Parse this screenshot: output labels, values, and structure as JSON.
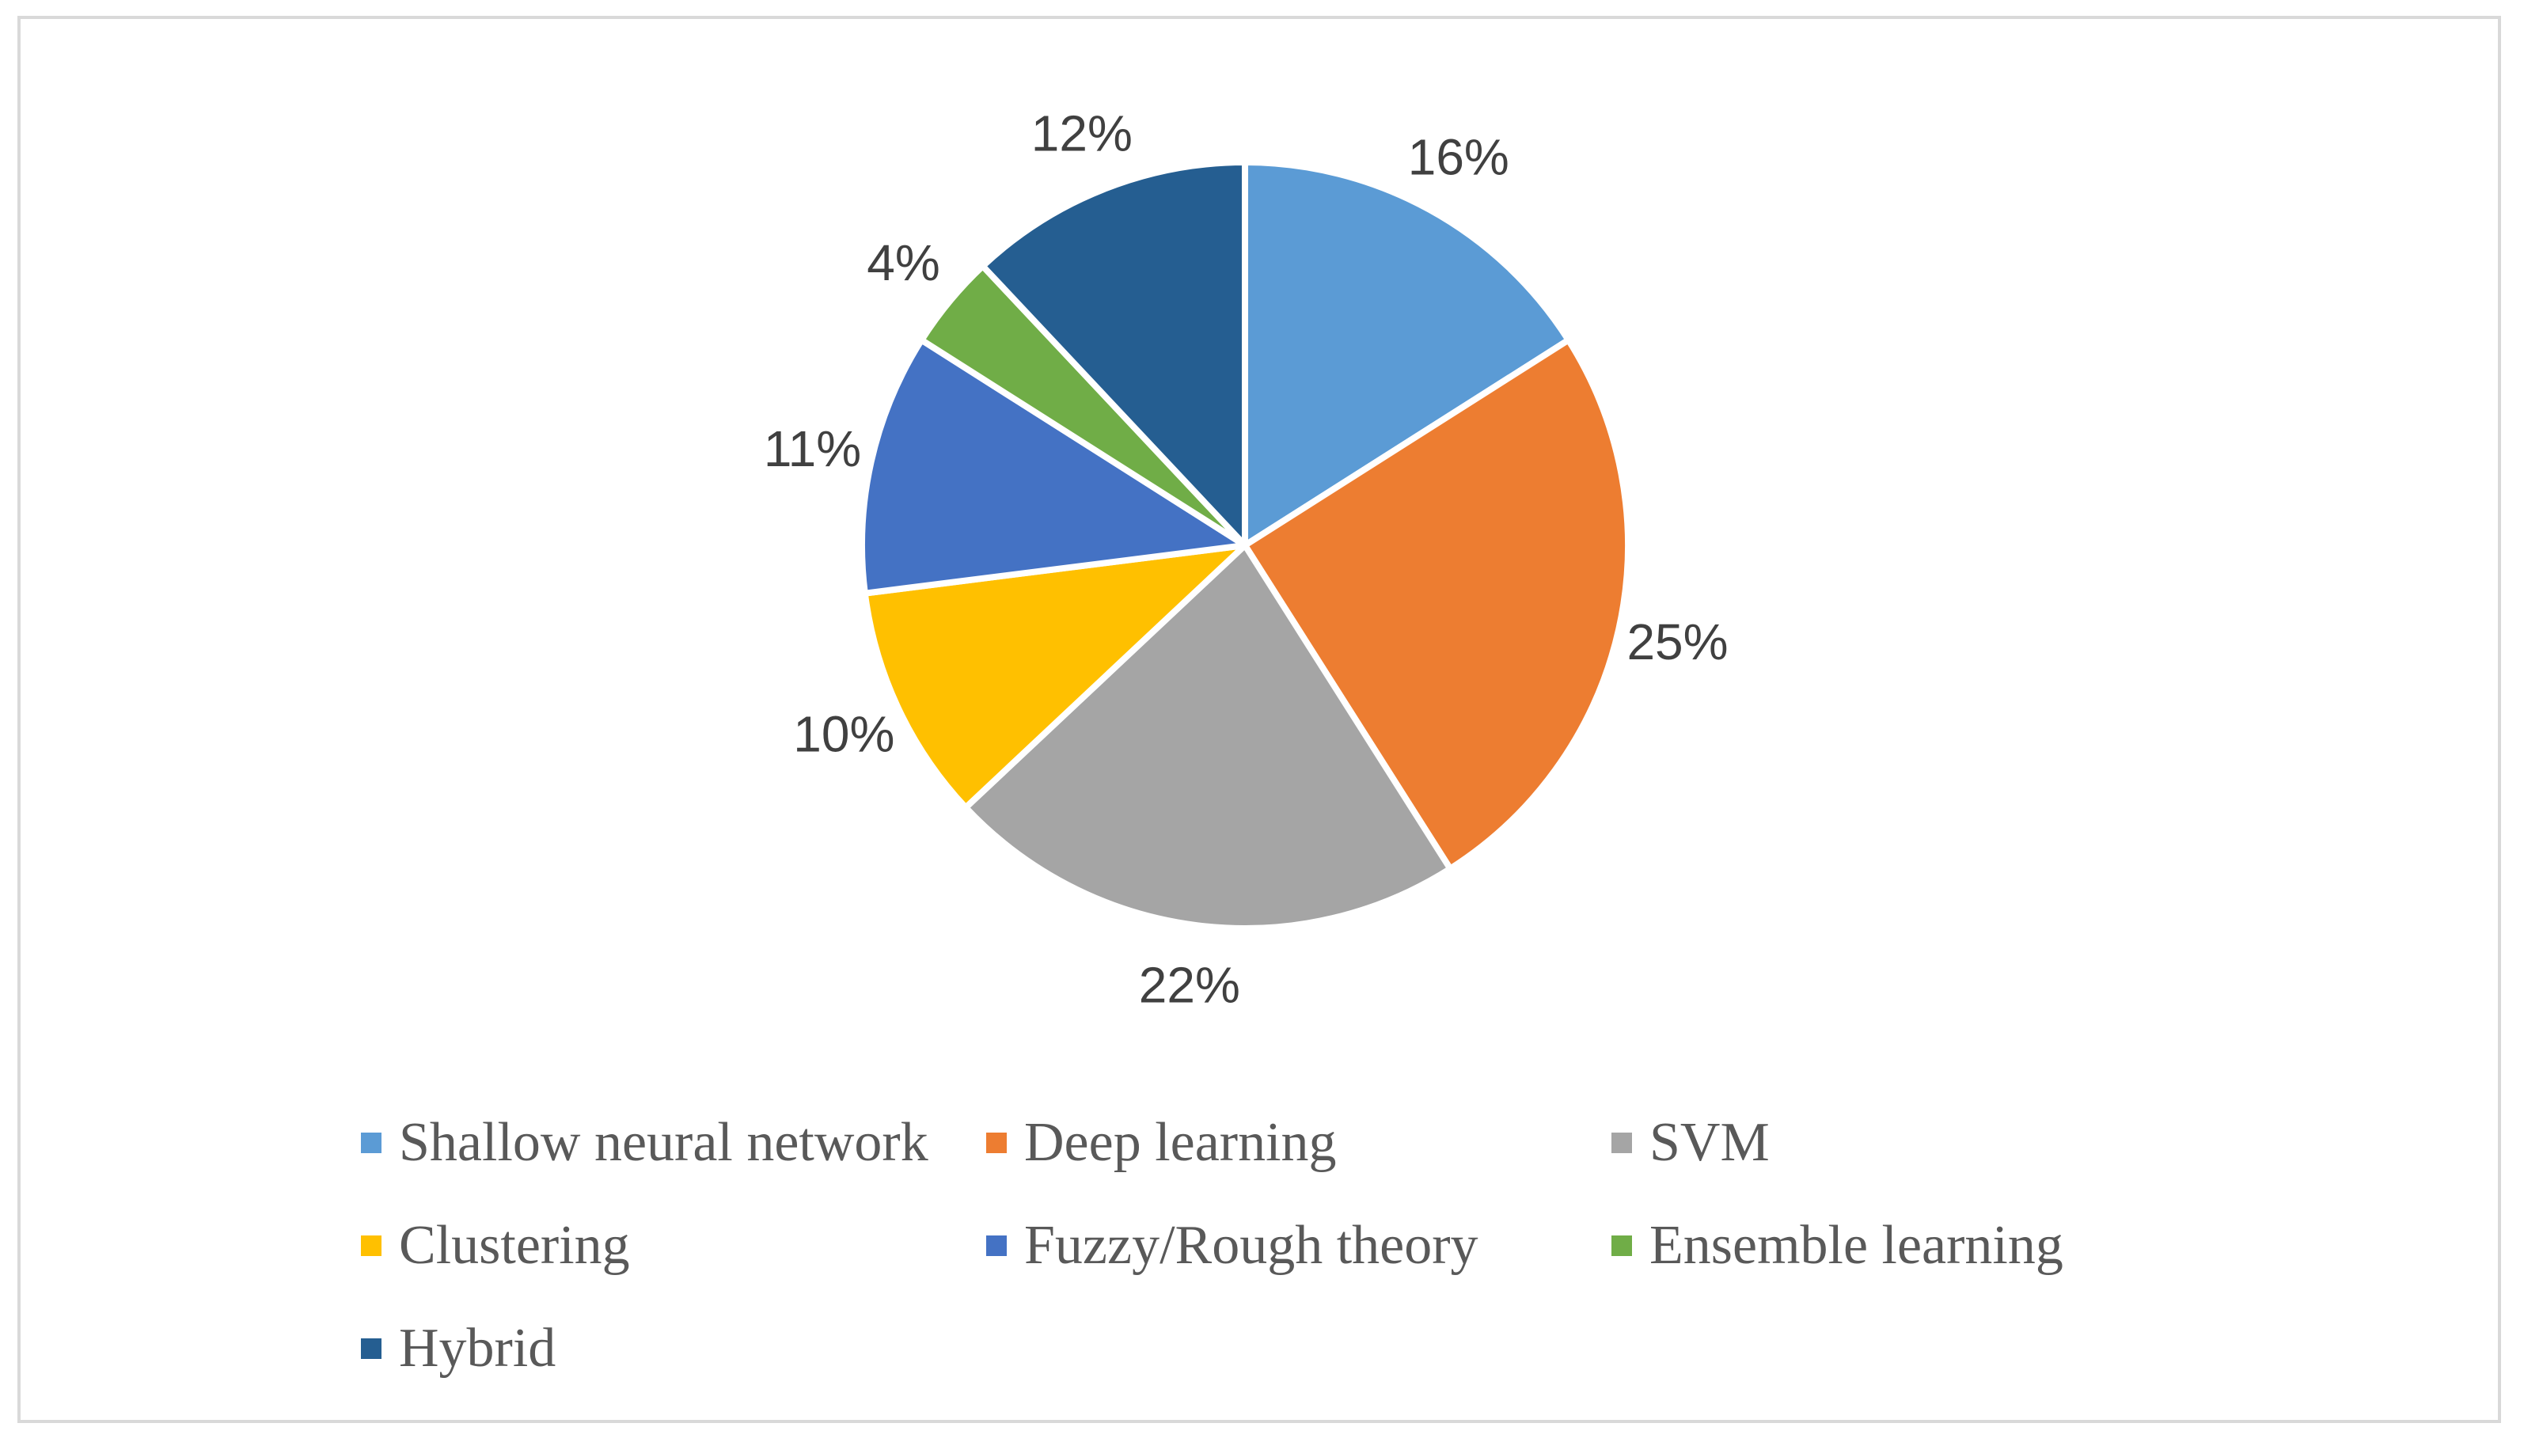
{
  "chart_data": {
    "type": "pie",
    "title": "",
    "categories": [
      "Shallow neural network",
      "Deep learning",
      "SVM",
      "Clustering",
      "Fuzzy/Rough theory",
      "Ensemble learning",
      "Hybrid"
    ],
    "values": [
      16,
      25,
      22,
      10,
      11,
      4,
      12
    ],
    "labels": [
      "16%",
      "25%",
      "22%",
      "10%",
      "11%",
      "4%",
      "12%"
    ],
    "colors": [
      "#5b9bd5",
      "#ed7d31",
      "#a5a5a5",
      "#ffc000",
      "#4472c4",
      "#70ad47",
      "#255e91"
    ],
    "start_angle_deg": 0,
    "direction": "clockwise",
    "legend_position": "bottom"
  }
}
